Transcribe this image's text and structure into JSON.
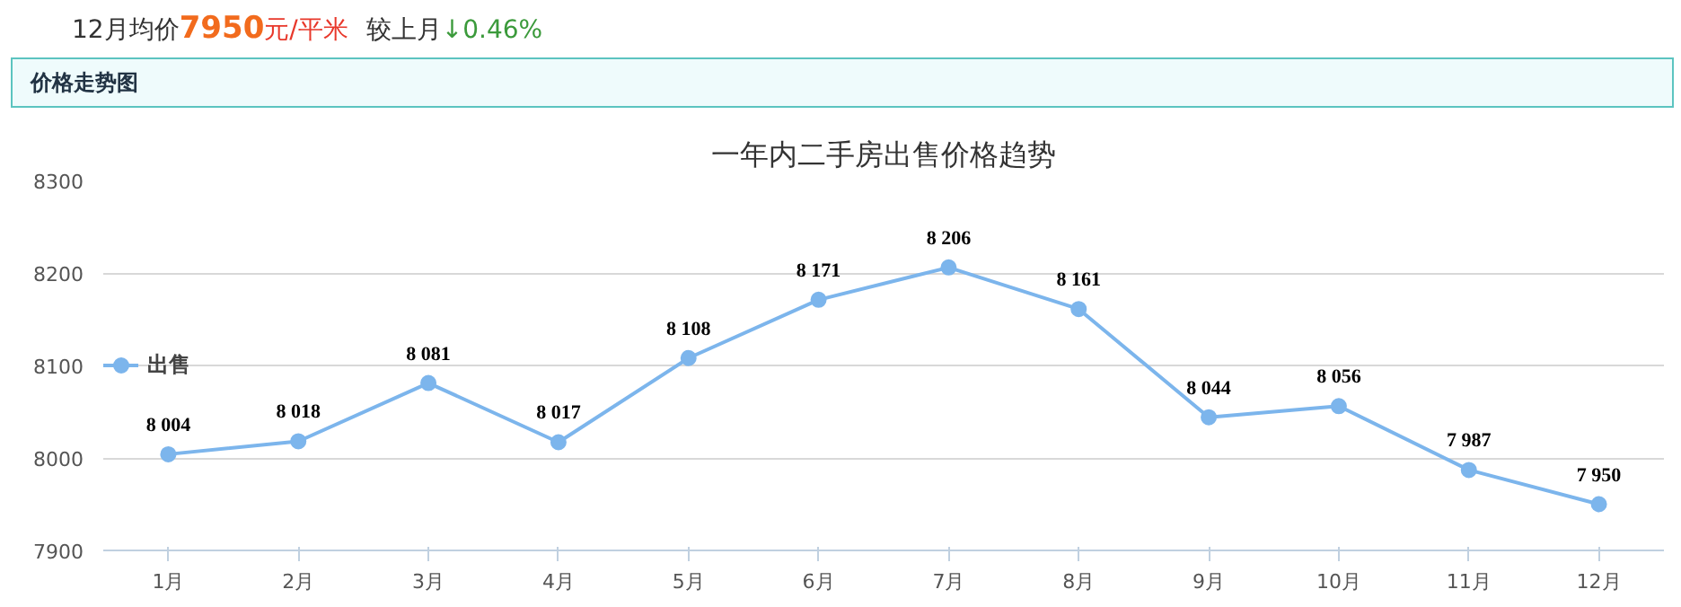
{
  "chart_data": {
    "type": "line",
    "title": "一年内二手房出售价格趋势",
    "annotations": [
      "12月均价",
      "7950",
      "元/平米",
      "较上月",
      "↓0.46%",
      "价格走势图"
    ],
    "categories": [
      "1月",
      "2月",
      "3月",
      "4月",
      "5月",
      "6月",
      "7月",
      "8月",
      "9月",
      "10月",
      "11月",
      "12月"
    ],
    "series": [
      {
        "name": "出售",
        "color": "#7cb5ec",
        "values": [
          8004,
          8018,
          8081,
          8017,
          8108,
          8171,
          8206,
          8161,
          8044,
          8056,
          7987,
          7950
        ],
        "value_labels": [
          "8 004",
          "8 018",
          "8 081",
          "8 017",
          "8 108",
          "8 171",
          "8 206",
          "8 161",
          "8 044",
          "8 056",
          "7 987",
          "7 950"
        ]
      }
    ],
    "ylim": [
      7900,
      8300
    ],
    "yticks": [
      7900,
      8000,
      8100,
      8200,
      8300
    ],
    "grid": "y",
    "legend": "left",
    "marker": "circle"
  }
}
